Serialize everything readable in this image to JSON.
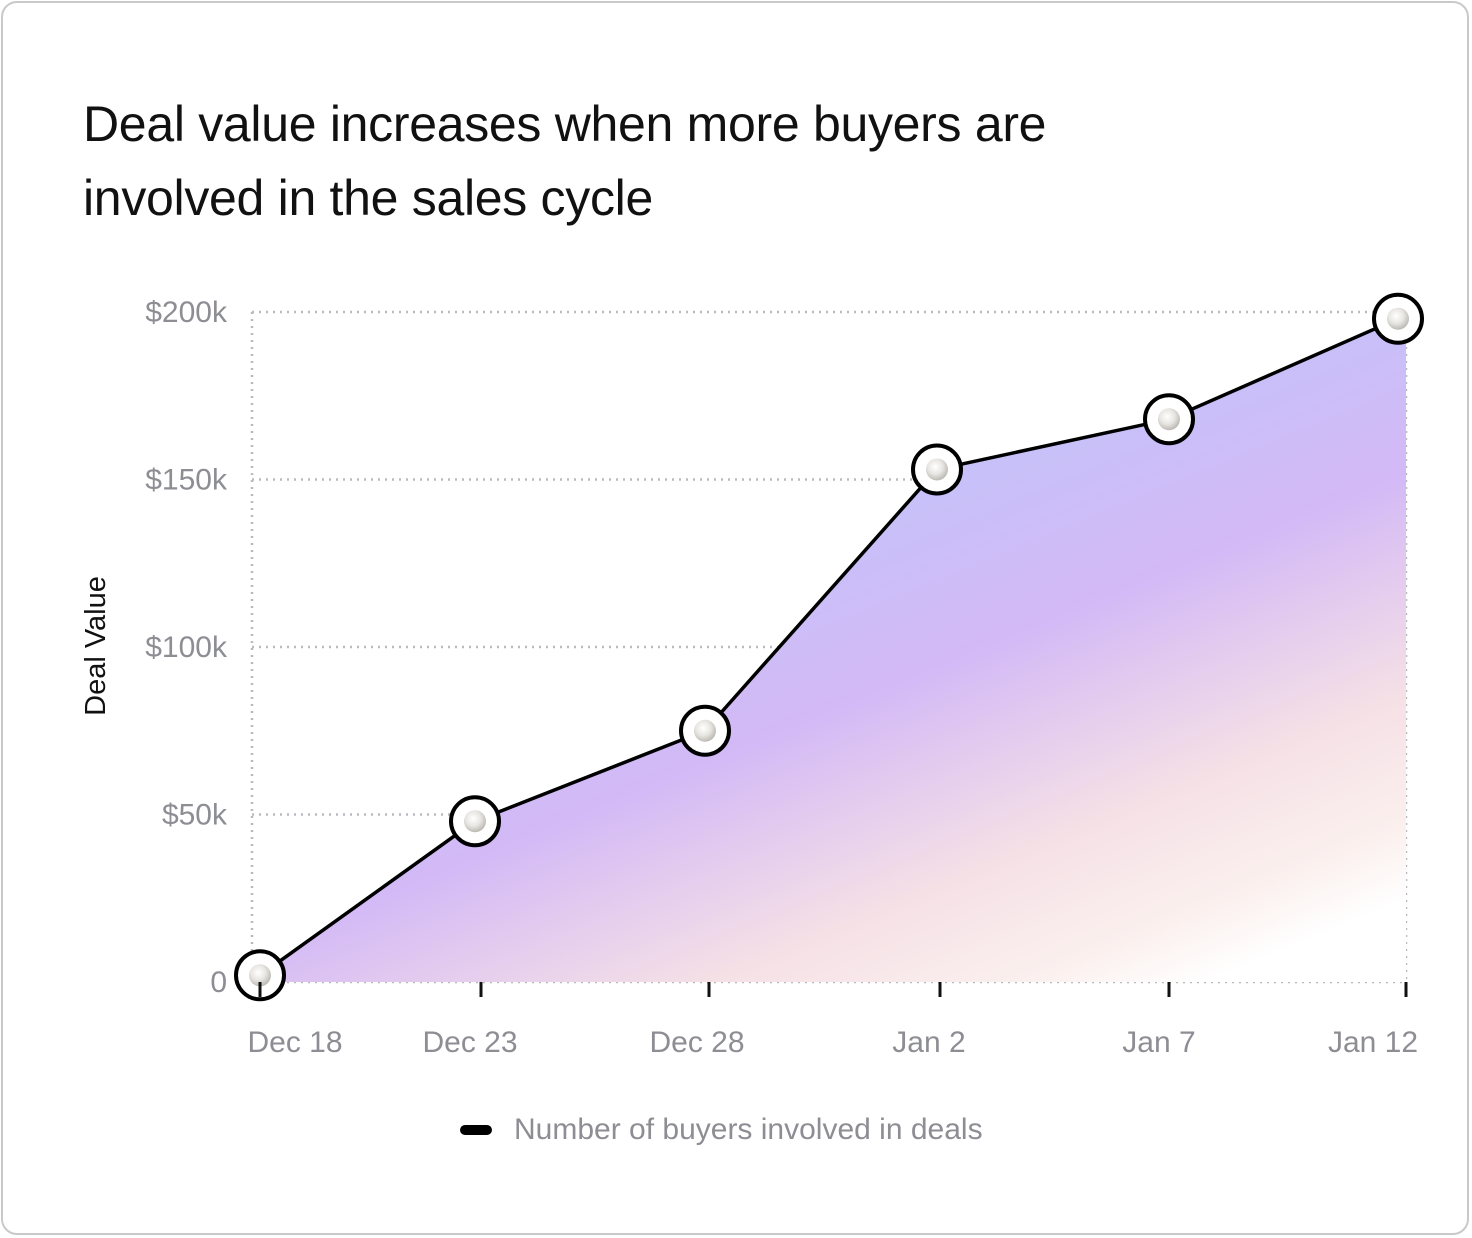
{
  "chart_data": {
    "type": "area",
    "title": "Deal value increases when more buyers are involved in the sales cycle",
    "ylabel": "Deal Value",
    "xlabel": "",
    "x_ticks": [
      "Dec 18",
      "Dec 23",
      "Dec 28",
      "Jan 2",
      "Jan 7",
      "Jan 12"
    ],
    "y_ticks": [
      "0",
      "$50k",
      "$100k",
      "$150k",
      "$200k"
    ],
    "ylim": [
      0,
      200000
    ],
    "grid": true,
    "legend_position": "bottom",
    "series": [
      {
        "name": "Number of buyers involved in deals",
        "color": "#000000",
        "points": [
          {
            "x": "Dec 18",
            "y": 2000
          },
          {
            "x": "Dec 23",
            "y": 48000
          },
          {
            "x": "Dec 28",
            "y": 75000
          },
          {
            "x": "Jan 2",
            "y": 153000
          },
          {
            "x": "Jan 7",
            "y": 168000
          },
          {
            "x": "Jan 12",
            "y": 198000
          }
        ]
      }
    ],
    "colors": {
      "fill_top": "#bfc6fb",
      "fill_mid": "#d3b9f6",
      "fill_low": "#f7e2df",
      "grid": "#b9b9c0",
      "tick_text": "#8d8d94",
      "marker_ring": "#000000",
      "marker_fill": "#ffffff"
    }
  }
}
